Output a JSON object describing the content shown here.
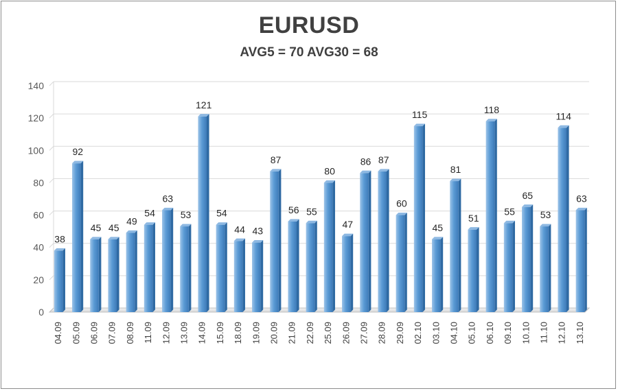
{
  "chart_data": {
    "type": "bar",
    "title": "EURUSD",
    "subtitle": "AVG5 = 70 AVG30 = 68",
    "categories": [
      "04.09",
      "05.09",
      "06.09",
      "07.09",
      "08.09",
      "11.09",
      "12.09",
      "13.09",
      "14.09",
      "15.09",
      "18.09",
      "19.09",
      "20.09",
      "21.09",
      "22.09",
      "25.09",
      "26.09",
      "27.09",
      "28.09",
      "29.09",
      "02.10",
      "03.10",
      "04.10",
      "05.10",
      "06.10",
      "09.10",
      "10.10",
      "11.10",
      "12.10",
      "13.10"
    ],
    "values": [
      38,
      92,
      45,
      45,
      49,
      54,
      63,
      53,
      121,
      54,
      44,
      43,
      87,
      56,
      55,
      80,
      47,
      86,
      87,
      60,
      115,
      45,
      81,
      51,
      118,
      55,
      65,
      53,
      114,
      63
    ],
    "ylim": [
      0,
      140
    ],
    "yticks": [
      0,
      20,
      40,
      60,
      80,
      100,
      120,
      140
    ],
    "grid": true,
    "colors": {
      "bar": "#5b9bd5",
      "bar_light": "#9cc3e8",
      "bar_dark": "#3d7ab8",
      "grid": "#d9d9d9"
    }
  }
}
